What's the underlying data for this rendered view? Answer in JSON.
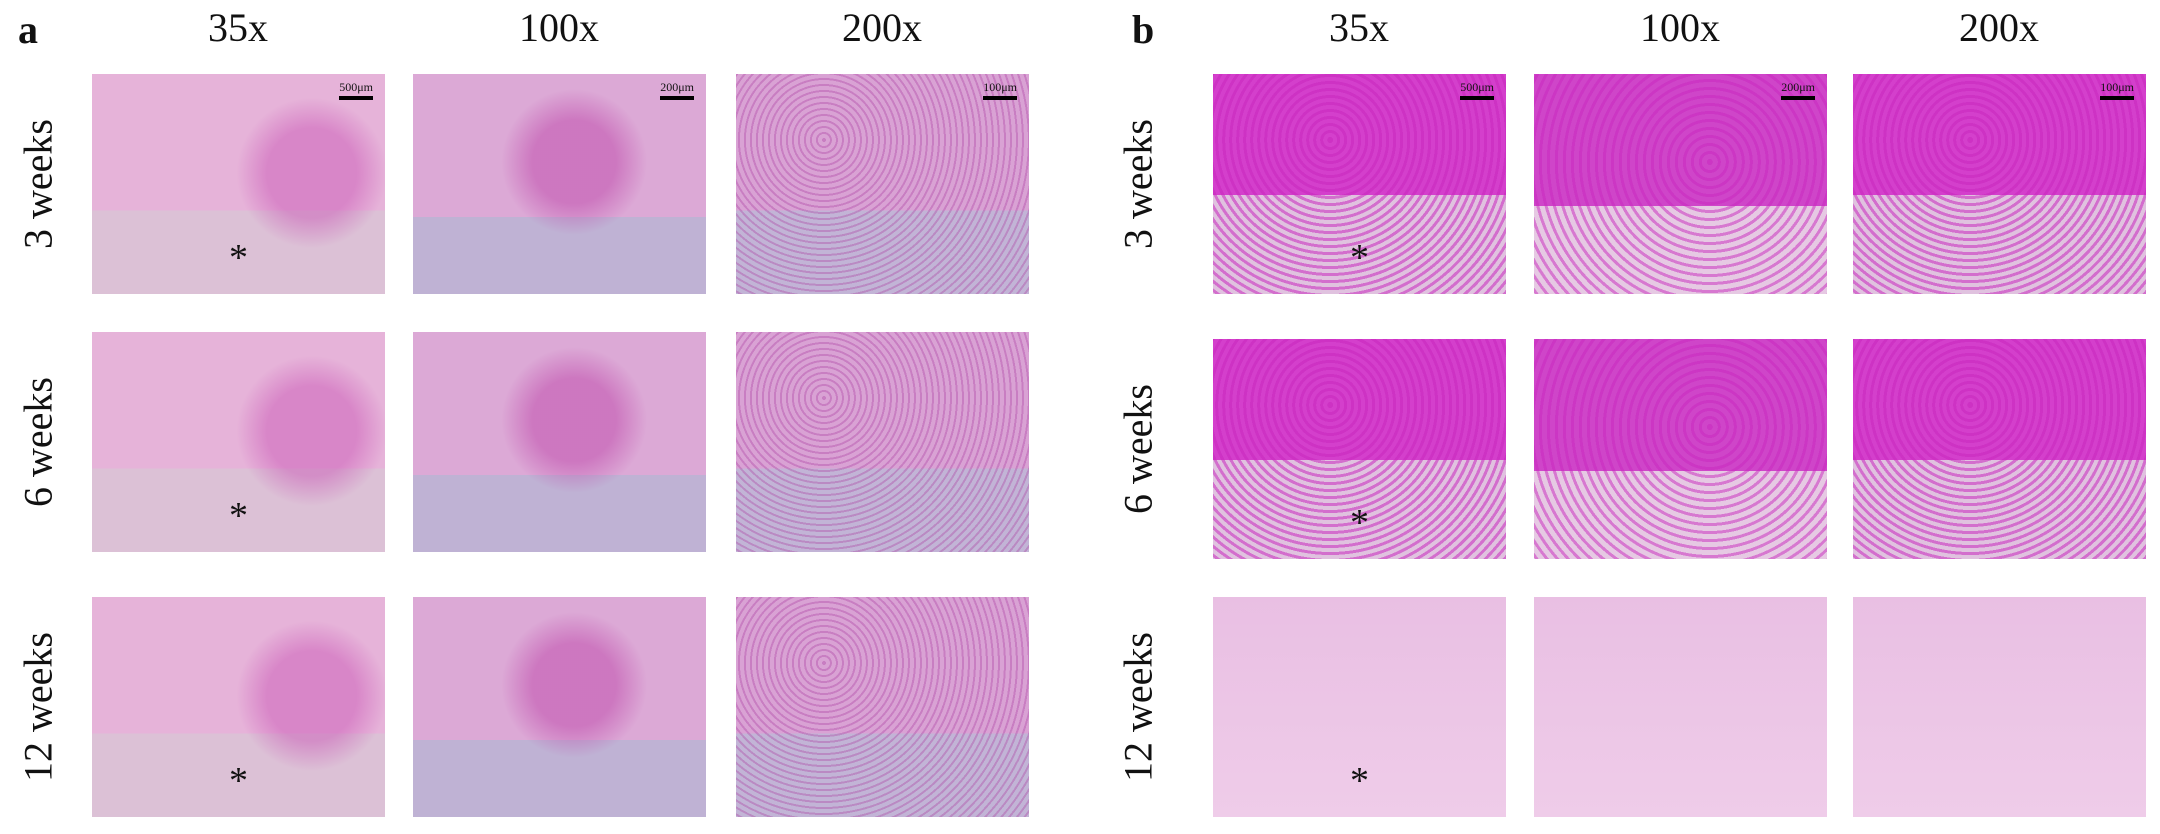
{
  "panels": [
    {
      "label": "a",
      "columns": [
        "35x",
        "100x",
        "200x"
      ],
      "rows": [
        "3 weeks",
        "6 weeks",
        "12 weeks"
      ],
      "scale_bars": [
        "500μm",
        "200μm",
        "100μm"
      ]
    },
    {
      "label": "b",
      "columns": [
        "35x",
        "100x",
        "200x"
      ],
      "rows": [
        "3 weeks",
        "6 weeks",
        "12 weeks"
      ],
      "scale_bars": [
        "500μm",
        "200μm",
        "100μm"
      ]
    }
  ],
  "implant_marker": "*"
}
